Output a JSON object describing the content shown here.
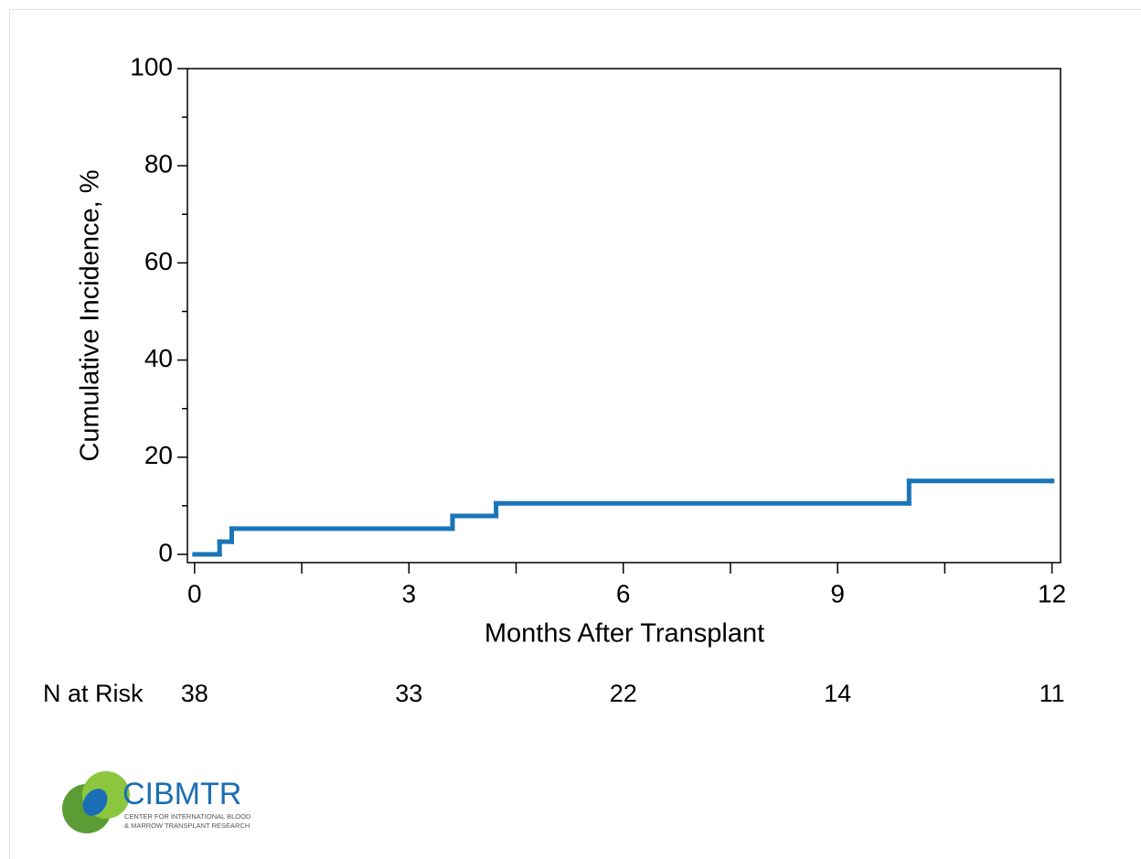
{
  "chart_data": {
    "type": "line",
    "step": "post",
    "x": [
      0,
      0.35,
      0.52,
      3.61,
      4.22,
      10.0,
      12
    ],
    "values": [
      0,
      2.6,
      5.3,
      7.9,
      10.5,
      15.1,
      15.1
    ],
    "color": "#1a75b8",
    "xlabel": "Months After Transplant",
    "ylabel": "Cumulative Incidence, %",
    "xlim": [
      -0.1,
      12.12
    ],
    "ylim": [
      -1.7,
      100
    ],
    "xticks": [
      0,
      3,
      6,
      9,
      12
    ],
    "xticks_minor": [
      1.5,
      4.5,
      7.5,
      10.5
    ],
    "yticks": [
      0,
      20,
      40,
      60,
      80,
      100
    ],
    "yticks_minor": [
      10,
      30,
      50,
      70,
      90
    ],
    "risk_table": {
      "label": "N at Risk",
      "times": [
        0,
        3,
        6,
        9,
        12
      ],
      "values": [
        38,
        33,
        22,
        14,
        11
      ]
    }
  },
  "logo": {
    "name": "CIBMTR",
    "subtitle": [
      "CENTER FOR INTERNATIONAL BLOOD",
      "& MARROW TRANSPLANT RESEARCH"
    ]
  }
}
